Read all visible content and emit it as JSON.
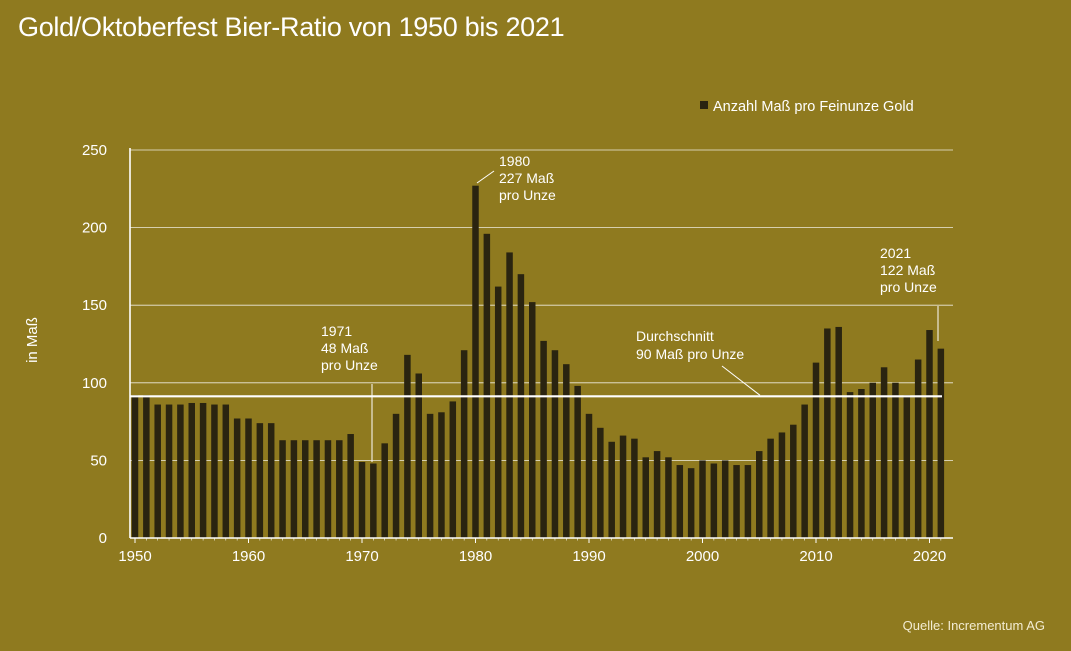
{
  "title": "Gold/Oktoberfest Bier-Ratio von 1950 bis 2021",
  "source": "Quelle: Incrementum AG",
  "colors": {
    "background": "#8f7a1f",
    "bar": "#2a2410",
    "gridline": "#ffffff",
    "average_line": "#ffffff",
    "text": "#ffffff"
  },
  "chart_data": {
    "type": "bar",
    "title": "Gold/Oktoberfest Bier-Ratio von 1950 bis 2021",
    "xlabel": "",
    "ylabel": "in Maß",
    "ylim": [
      0,
      250
    ],
    "yticks": [
      0,
      50,
      100,
      150,
      200,
      250
    ],
    "xticks": [
      1950,
      1960,
      1970,
      1980,
      1990,
      2000,
      2010,
      2020
    ],
    "grid": true,
    "legend": {
      "position": "top-right",
      "entries": [
        "Anzahl Maß pro Feinunze Gold"
      ]
    },
    "series": [
      {
        "name": "Anzahl Maß pro Feinunze Gold",
        "x": [
          1950,
          1951,
          1952,
          1953,
          1954,
          1955,
          1956,
          1957,
          1958,
          1959,
          1960,
          1961,
          1962,
          1963,
          1964,
          1965,
          1966,
          1967,
          1968,
          1969,
          1970,
          1971,
          1972,
          1973,
          1974,
          1975,
          1976,
          1977,
          1978,
          1979,
          1980,
          1981,
          1982,
          1983,
          1984,
          1985,
          1986,
          1987,
          1988,
          1989,
          1990,
          1991,
          1992,
          1993,
          1994,
          1995,
          1996,
          1997,
          1998,
          1999,
          2000,
          2001,
          2002,
          2003,
          2004,
          2005,
          2006,
          2007,
          2008,
          2009,
          2010,
          2011,
          2012,
          2013,
          2014,
          2015,
          2016,
          2017,
          2018,
          2019,
          2020,
          2021
        ],
        "values": [
          92,
          92,
          86,
          86,
          86,
          87,
          87,
          86,
          86,
          77,
          77,
          74,
          74,
          63,
          63,
          63,
          63,
          63,
          63,
          67,
          49,
          48,
          61,
          80,
          118,
          106,
          80,
          81,
          88,
          121,
          227,
          196,
          162,
          184,
          170,
          152,
          127,
          121,
          112,
          98,
          80,
          71,
          62,
          66,
          64,
          52,
          56,
          52,
          47,
          45,
          50,
          48,
          50,
          47,
          47,
          56,
          64,
          68,
          73,
          86,
          113,
          135,
          136,
          94,
          96,
          100,
          110,
          100,
          92,
          115,
          134,
          122
        ]
      }
    ],
    "reference_line": {
      "label_line1": "Durchschnitt",
      "label_line2": "90 Maß pro Unze",
      "value": 90
    },
    "annotations": [
      {
        "year": 1971,
        "value": 48,
        "line1": "1971",
        "line2": "48 Maß",
        "line3": "pro Unze"
      },
      {
        "year": 1980,
        "value": 227,
        "line1": "1980",
        "line2": "227 Maß",
        "line3": "pro Unze"
      },
      {
        "year": 2021,
        "value": 122,
        "line1": "2021",
        "line2": "122 Maß",
        "line3": "pro Unze"
      }
    ]
  }
}
